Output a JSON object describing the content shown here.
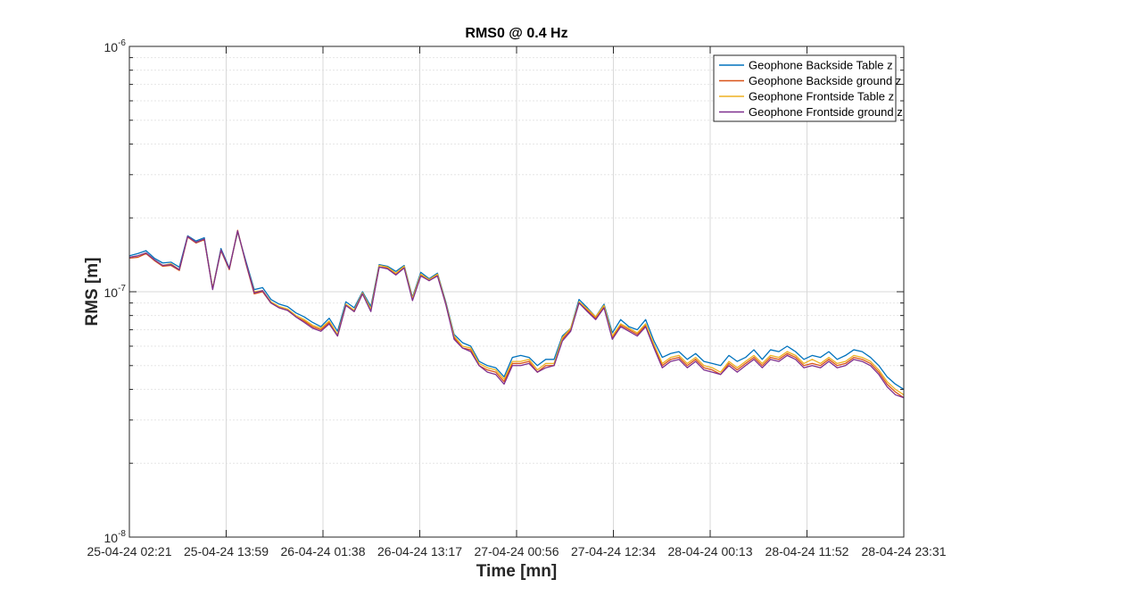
{
  "chart_data": {
    "type": "line",
    "title": "RMS0 @ 0.4 Hz",
    "xlabel": "Time [mn]",
    "ylabel": "RMS [m]",
    "yscale": "log",
    "ylim": [
      1e-08,
      1e-06
    ],
    "y_ticks": [
      {
        "value": 1e-08,
        "base": "10",
        "exp": "-8"
      },
      {
        "value": 1e-07,
        "base": "10",
        "exp": "-7"
      },
      {
        "value": 1e-06,
        "base": "10",
        "exp": "-6"
      }
    ],
    "x_tick_labels": [
      "25-04-24  02:21",
      "25-04-24  13:59",
      "26-04-24  01:38",
      "26-04-24  13:17",
      "27-04-24  00:56",
      "27-04-24  12:34",
      "28-04-24  00:13",
      "28-04-24  11:52",
      "28-04-24  23:31"
    ],
    "grid": true,
    "minor_grid": true,
    "legend_position": "top-right",
    "series": [
      {
        "name": "Geophone Backside Table z",
        "color": "#0072BD",
        "values": [
          1.4e-07,
          1.43e-07,
          1.47e-07,
          1.37e-07,
          1.31e-07,
          1.32e-07,
          1.26e-07,
          1.69e-07,
          1.61e-07,
          1.66e-07,
          1.03e-07,
          1.5e-07,
          1.25e-07,
          1.75e-07,
          1.33e-07,
          1.02e-07,
          1.04e-07,
          9.3e-08,
          8.9e-08,
          8.7e-08,
          8.2e-08,
          7.9e-08,
          7.5e-08,
          7.2e-08,
          7.8e-08,
          6.9e-08,
          9.1e-08,
          8.6e-08,
          1e-07,
          8.7e-08,
          1.29e-07,
          1.27e-07,
          1.21e-07,
          1.28e-07,
          9.5e-08,
          1.2e-07,
          1.13e-07,
          1.19e-07,
          9.1e-08,
          6.7e-08,
          6.2e-08,
          6e-08,
          5.2e-08,
          5e-08,
          4.9e-08,
          4.5e-08,
          5.4e-08,
          5.5e-08,
          5.4e-08,
          5e-08,
          5.3e-08,
          5.3e-08,
          6.6e-08,
          7.1e-08,
          9.3e-08,
          8.6e-08,
          7.9e-08,
          8.9e-08,
          6.8e-08,
          7.7e-08,
          7.2e-08,
          7e-08,
          7.7e-08,
          6.3e-08,
          5.4e-08,
          5.6e-08,
          5.7e-08,
          5.3e-08,
          5.6e-08,
          5.2e-08,
          5.1e-08,
          5e-08,
          5.5e-08,
          5.2e-08,
          5.4e-08,
          5.8e-08,
          5.3e-08,
          5.8e-08,
          5.7e-08,
          6e-08,
          5.7e-08,
          5.3e-08,
          5.5e-08,
          5.4e-08,
          5.7e-08,
          5.3e-08,
          5.5e-08,
          5.8e-08,
          5.7e-08,
          5.4e-08,
          5e-08,
          4.5e-08,
          4.2e-08,
          4e-08
        ]
      },
      {
        "name": "Geophone Backside ground z",
        "color": "#D95319",
        "values": [
          1.37e-07,
          1.38e-07,
          1.43e-07,
          1.34e-07,
          1.27e-07,
          1.28e-07,
          1.22e-07,
          1.67e-07,
          1.58e-07,
          1.63e-07,
          1.03e-07,
          1.47e-07,
          1.23e-07,
          1.78e-07,
          1.3e-07,
          9.8e-08,
          1e-07,
          9e-08,
          8.6e-08,
          8.4e-08,
          7.9e-08,
          7.6e-08,
          7.2e-08,
          7e-08,
          7.5e-08,
          6.6e-08,
          8.8e-08,
          8.3e-08,
          9.8e-08,
          8.4e-08,
          1.26e-07,
          1.25e-07,
          1.18e-07,
          1.26e-07,
          9.3e-08,
          1.17e-07,
          1.11e-07,
          1.17e-07,
          8.9e-08,
          6.5e-08,
          5.9e-08,
          5.8e-08,
          5e-08,
          4.8e-08,
          4.7e-08,
          4.3e-08,
          5.1e-08,
          5.1e-08,
          5.2e-08,
          4.7e-08,
          5e-08,
          5e-08,
          6.4e-08,
          7e-08,
          9e-08,
          8.4e-08,
          7.8e-08,
          8.7e-08,
          6.5e-08,
          7.3e-08,
          7e-08,
          6.7e-08,
          7.3e-08,
          6e-08,
          5e-08,
          5.3e-08,
          5.4e-08,
          5e-08,
          5.3e-08,
          4.9e-08,
          4.8e-08,
          4.6e-08,
          5.1e-08,
          4.8e-08,
          5.1e-08,
          5.4e-08,
          5e-08,
          5.4e-08,
          5.3e-08,
          5.6e-08,
          5.4e-08,
          5e-08,
          5.1e-08,
          5e-08,
          5.3e-08,
          5e-08,
          5.1e-08,
          5.4e-08,
          5.3e-08,
          5.1e-08,
          4.7e-08,
          4.2e-08,
          3.9e-08,
          3.7e-08
        ]
      },
      {
        "name": "Geophone Frontside Table z",
        "color": "#EDB120",
        "values": [
          1.38e-07,
          1.4e-07,
          1.44e-07,
          1.35e-07,
          1.28e-07,
          1.3e-07,
          1.23e-07,
          1.68e-07,
          1.59e-07,
          1.64e-07,
          1.03e-07,
          1.48e-07,
          1.24e-07,
          1.76e-07,
          1.31e-07,
          1e-07,
          1.01e-07,
          9.1e-08,
          8.7e-08,
          8.5e-08,
          8e-08,
          7.7e-08,
          7.3e-08,
          7.1e-08,
          7.6e-08,
          6.7e-08,
          8.9e-08,
          8.4e-08,
          9.9e-08,
          8.5e-08,
          1.28e-07,
          1.26e-07,
          1.19e-07,
          1.27e-07,
          9.4e-08,
          1.18e-07,
          1.12e-07,
          1.18e-07,
          9e-08,
          6.6e-08,
          6e-08,
          5.9e-08,
          5.1e-08,
          4.9e-08,
          4.8e-08,
          4.4e-08,
          5.2e-08,
          5.2e-08,
          5.3e-08,
          4.8e-08,
          5.1e-08,
          5.1e-08,
          6.5e-08,
          7.1e-08,
          9.1e-08,
          8.5e-08,
          7.9e-08,
          8.8e-08,
          6.6e-08,
          7.4e-08,
          7.1e-08,
          6.8e-08,
          7.4e-08,
          6.1e-08,
          5.1e-08,
          5.4e-08,
          5.5e-08,
          5.1e-08,
          5.4e-08,
          5e-08,
          4.9e-08,
          4.7e-08,
          5.2e-08,
          4.9e-08,
          5.2e-08,
          5.5e-08,
          5.1e-08,
          5.5e-08,
          5.4e-08,
          5.7e-08,
          5.5e-08,
          5.1e-08,
          5.3e-08,
          5.1e-08,
          5.4e-08,
          5.1e-08,
          5.2e-08,
          5.5e-08,
          5.4e-08,
          5.2e-08,
          4.8e-08,
          4.3e-08,
          4e-08,
          3.8e-08
        ]
      },
      {
        "name": "Geophone Frontside ground z",
        "color": "#7E2F8E",
        "values": [
          1.38e-07,
          1.4e-07,
          1.44e-07,
          1.35e-07,
          1.28e-07,
          1.29e-07,
          1.23e-07,
          1.68e-07,
          1.59e-07,
          1.64e-07,
          1.02e-07,
          1.48e-07,
          1.24e-07,
          1.77e-07,
          1.31e-07,
          9.9e-08,
          1.01e-07,
          9e-08,
          8.6e-08,
          8.4e-08,
          7.9e-08,
          7.5e-08,
          7.1e-08,
          6.9e-08,
          7.4e-08,
          6.6e-08,
          8.8e-08,
          8.3e-08,
          9.8e-08,
          8.3e-08,
          1.26e-07,
          1.24e-07,
          1.17e-07,
          1.25e-07,
          9.2e-08,
          1.16e-07,
          1.11e-07,
          1.16e-07,
          8.9e-08,
          6.4e-08,
          5.9e-08,
          5.7e-08,
          5e-08,
          4.7e-08,
          4.6e-08,
          4.2e-08,
          5e-08,
          5e-08,
          5.1e-08,
          4.7e-08,
          4.9e-08,
          5e-08,
          6.3e-08,
          6.9e-08,
          9e-08,
          8.3e-08,
          7.7e-08,
          8.6e-08,
          6.4e-08,
          7.2e-08,
          6.9e-08,
          6.6e-08,
          7.2e-08,
          5.9e-08,
          4.9e-08,
          5.2e-08,
          5.3e-08,
          4.9e-08,
          5.2e-08,
          4.8e-08,
          4.7e-08,
          4.6e-08,
          5e-08,
          4.7e-08,
          5e-08,
          5.3e-08,
          4.9e-08,
          5.3e-08,
          5.2e-08,
          5.5e-08,
          5.3e-08,
          4.9e-08,
          5e-08,
          4.9e-08,
          5.2e-08,
          4.9e-08,
          5e-08,
          5.3e-08,
          5.2e-08,
          5e-08,
          4.6e-08,
          4.1e-08,
          3.8e-08,
          3.7e-08
        ]
      }
    ]
  }
}
